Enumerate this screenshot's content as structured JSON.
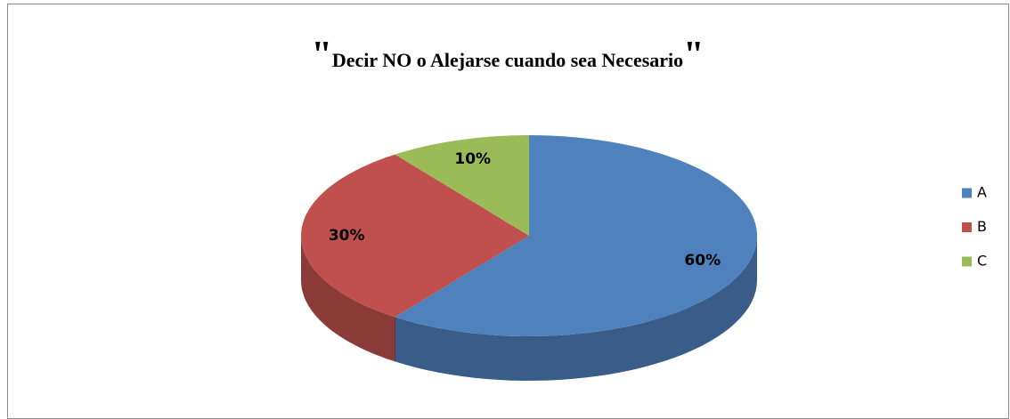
{
  "chart_data": {
    "type": "pie",
    "title": "\"Decir NO o Alejarse cuando sea Necesario\"",
    "categories": [
      "A",
      "B",
      "C"
    ],
    "values": [
      60,
      30,
      10
    ],
    "value_labels": [
      "60%",
      "30%",
      "10%"
    ],
    "colors": [
      "#4f81bd",
      "#c0504d",
      "#9bbb59"
    ],
    "legend": "right"
  }
}
